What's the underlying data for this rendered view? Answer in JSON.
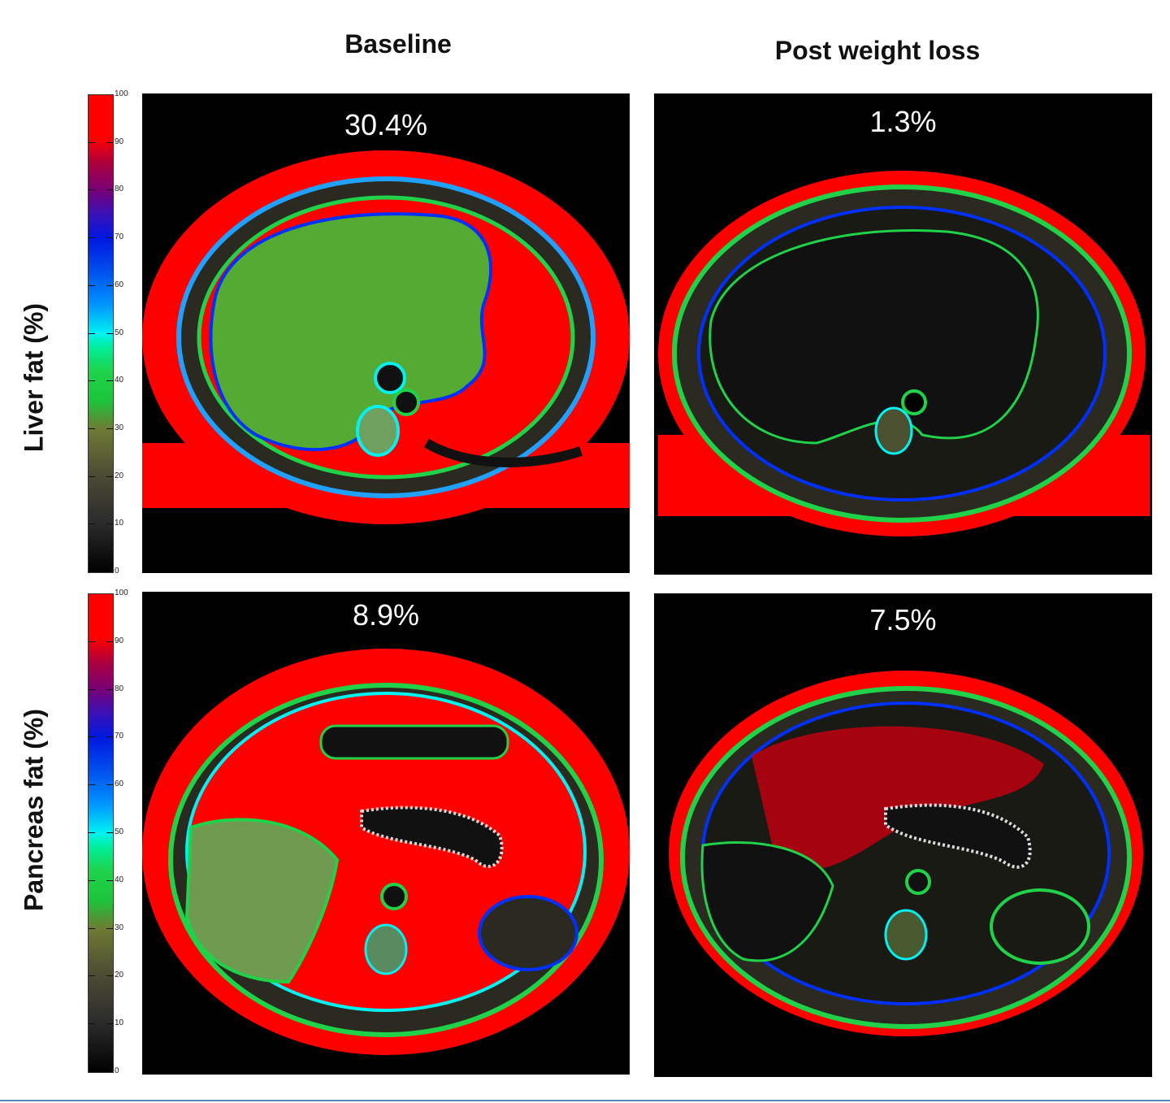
{
  "columns": [
    "Baseline",
    "Post weight loss"
  ],
  "rows": [
    "Liver fat (%)",
    "Pancreas fat (%)"
  ],
  "colorbar": {
    "ticks": [
      "0",
      "10",
      "20",
      "30",
      "40",
      "50",
      "60",
      "70",
      "80",
      "90",
      "100"
    ],
    "colors": {
      "low": "#000000",
      "mid_low": "#6f7a33",
      "mid": "#1fd24a",
      "cyan": "#00f2f2",
      "blue": "#0018e0",
      "purple": "#760078",
      "high": "#ff0000"
    }
  },
  "panels": {
    "liver_baseline": {
      "value": "30.4%"
    },
    "liver_post": {
      "value": "1.3%"
    },
    "pancreas_baseline": {
      "value": "8.9%"
    },
    "pancreas_post": {
      "value": "7.5%"
    }
  }
}
